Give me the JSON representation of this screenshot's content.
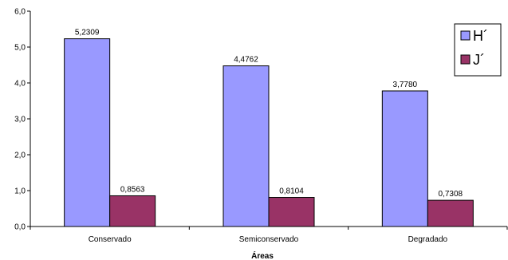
{
  "chart_data": {
    "type": "bar",
    "title": "",
    "xlabel": "Áreas",
    "ylabel": "",
    "ylim": [
      0,
      6
    ],
    "yticks": [
      "0,0",
      "1,0",
      "2,0",
      "3,0",
      "4,0",
      "5,0",
      "6,0"
    ],
    "categories": [
      "Conservado",
      "Semiconservado",
      "Degradado"
    ],
    "series": [
      {
        "name": "H´",
        "values": [
          5.2309,
          4.4762,
          3.778
        ],
        "labels": [
          "5,2309",
          "4,4762",
          "3,7780"
        ],
        "color": "#9999ff"
      },
      {
        "name": "J´",
        "values": [
          0.8563,
          0.8104,
          0.7308
        ],
        "labels": [
          "0,8563",
          "0,8104",
          "0,7308"
        ],
        "color": "#993366"
      }
    ],
    "grid": false,
    "legend_position": "top-right"
  }
}
